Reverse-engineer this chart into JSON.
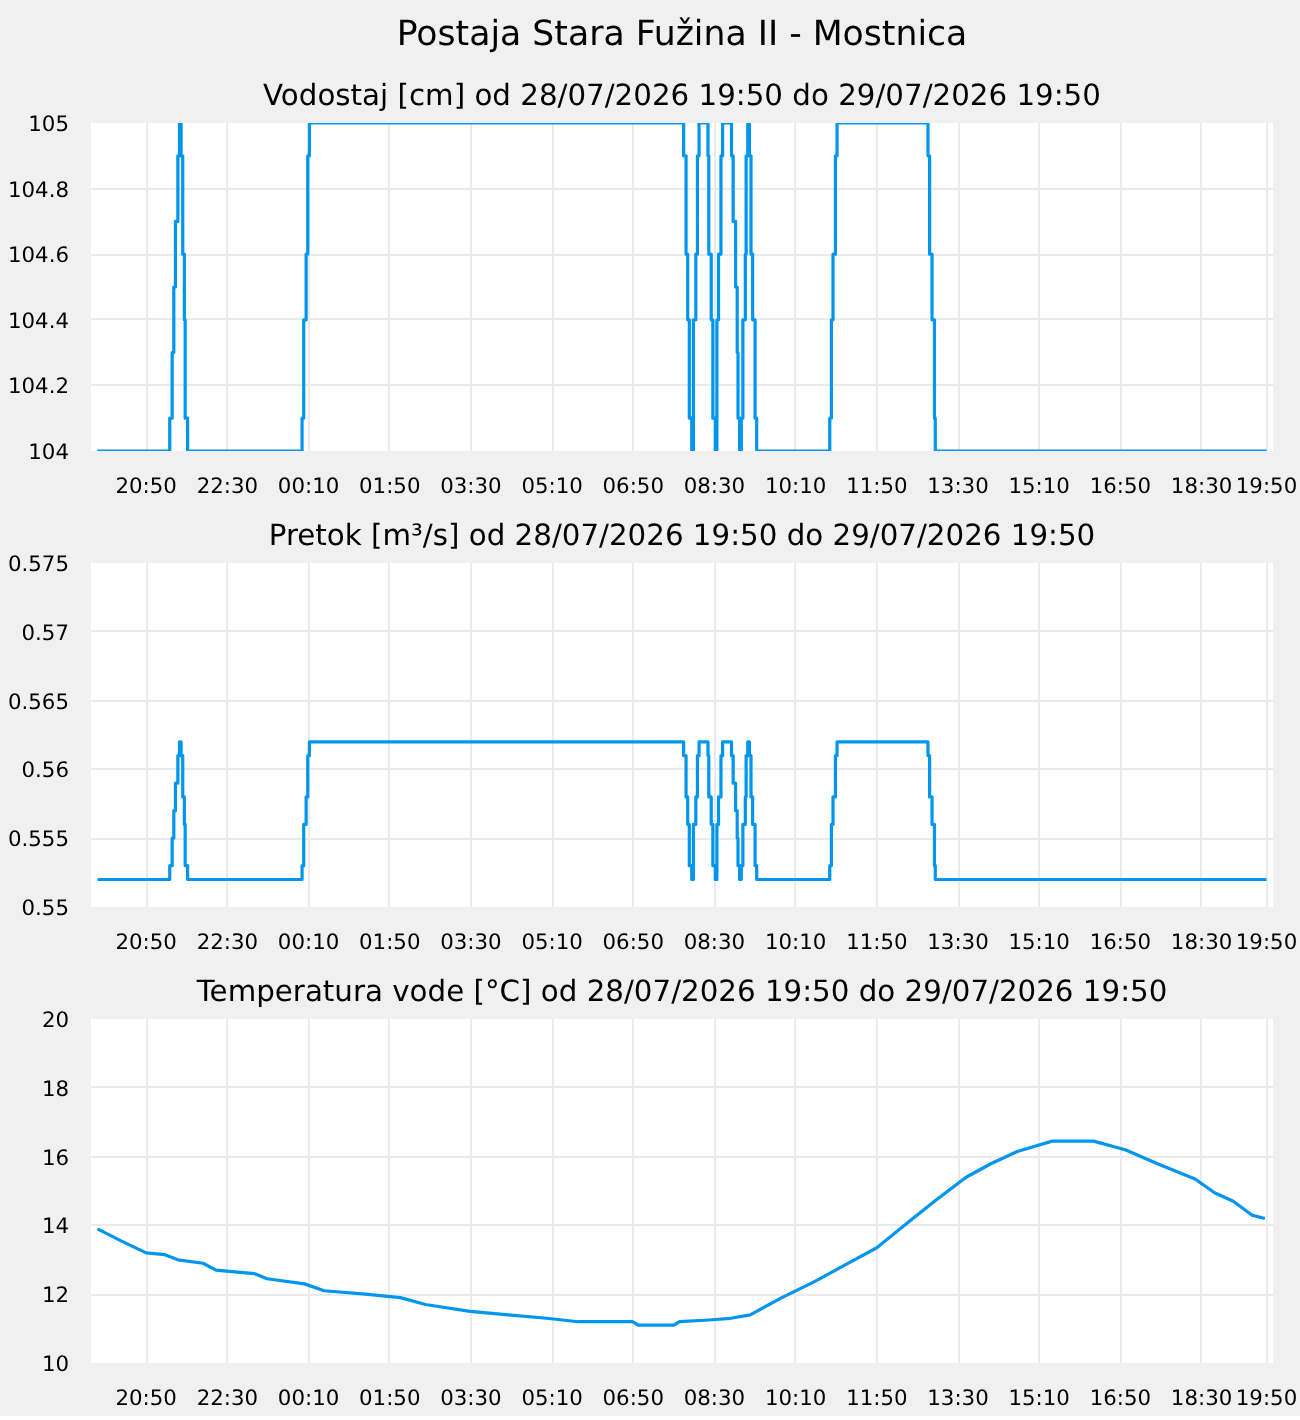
{
  "chart_data": [
    {
      "type": "step",
      "title": "Postaja Stara Fužina II - Mostnica",
      "subtitle": "Vodostaj [cm] od 28/07/2026 19:50 do 29/07/2026 19:50",
      "color": "#0096ee",
      "grid": true,
      "x": [
        "2026-07-28T19:50",
        "2026-07-28T21:19",
        "2026-07-28T21:22",
        "2026-07-28T21:24",
        "2026-07-28T21:26",
        "2026-07-28T21:29",
        "2026-07-28T21:31",
        "2026-07-28T21:33",
        "2026-07-28T21:35",
        "2026-07-28T21:37",
        "2026-07-28T21:38",
        "2026-07-28T21:41",
        "2026-07-29T00:02",
        "2026-07-29T00:04",
        "2026-07-29T00:07",
        "2026-07-29T00:09",
        "2026-07-29T00:11",
        "2026-07-29T07:52",
        "2026-07-29T07:55",
        "2026-07-29T07:57",
        "2026-07-29T07:59",
        "2026-07-29T08:02",
        "2026-07-29T08:04",
        "2026-07-29T08:07",
        "2026-07-29T08:09",
        "2026-07-29T08:11",
        "2026-07-29T08:22",
        "2026-07-29T08:23",
        "2026-07-29T08:26",
        "2026-07-29T08:28",
        "2026-07-29T08:31",
        "2026-07-29T08:33",
        "2026-07-29T08:35",
        "2026-07-29T08:38",
        "2026-07-29T08:40",
        "2026-07-29T08:51",
        "2026-07-29T08:53",
        "2026-07-29T08:56",
        "2026-07-29T08:58",
        "2026-07-29T08:59",
        "2026-07-29T09:01",
        "2026-07-29T09:03",
        "2026-07-29T09:05",
        "2026-07-29T09:08",
        "2026-07-29T09:09",
        "2026-07-29T09:11",
        "2026-07-29T09:13",
        "2026-07-29T09:15",
        "2026-07-29T09:17",
        "2026-07-29T09:20",
        "2026-07-29T09:22",
        "2026-07-29T10:52",
        "2026-07-29T10:54",
        "2026-07-29T10:56",
        "2026-07-29T10:59",
        "2026-07-29T11:01",
        "2026-07-29T12:53",
        "2026-07-29T12:55",
        "2026-07-29T12:58",
        "2026-07-29T13:01",
        "2026-07-29T13:02",
        "2026-07-29T19:50"
      ],
      "values": [
        104,
        104.1,
        104.3,
        104.5,
        104.7,
        104.9,
        105,
        104.9,
        104.6,
        104.4,
        104.1,
        104,
        104.1,
        104.4,
        104.6,
        104.9,
        105,
        104.9,
        104.6,
        104.4,
        104.1,
        104,
        104.4,
        104.6,
        104.9,
        105,
        104.9,
        104.6,
        104.4,
        104.1,
        104,
        104.4,
        104.6,
        104.9,
        105,
        104.9,
        104.7,
        104.5,
        104.3,
        104.1,
        104,
        104.1,
        104.4,
        104.6,
        104.9,
        105,
        104.9,
        104.6,
        104.4,
        104.1,
        104,
        104.1,
        104.4,
        104.6,
        104.9,
        105,
        104.9,
        104.6,
        104.4,
        104.1,
        104,
        104
      ],
      "xlim": [
        "2026-07-28T19:42",
        "2026-07-29T19:58"
      ],
      "ylim": [
        104,
        105
      ],
      "yticks": [
        104,
        104.2,
        104.4,
        104.6,
        104.8,
        105
      ],
      "xticks": [
        {
          "value": "2026-07-28T20:50",
          "label": "20:50"
        },
        {
          "value": "2026-07-28T22:30",
          "label": "22:30"
        },
        {
          "value": "2026-07-29T00:10",
          "label": "00:10"
        },
        {
          "value": "2026-07-29T01:50",
          "label": "01:50"
        },
        {
          "value": "2026-07-29T03:30",
          "label": "03:30"
        },
        {
          "value": "2026-07-29T05:10",
          "label": "05:10"
        },
        {
          "value": "2026-07-29T06:50",
          "label": "06:50"
        },
        {
          "value": "2026-07-29T08:30",
          "label": "08:30"
        },
        {
          "value": "2026-07-29T10:10",
          "label": "10:10"
        },
        {
          "value": "2026-07-29T11:50",
          "label": "11:50"
        },
        {
          "value": "2026-07-29T13:30",
          "label": "13:30"
        },
        {
          "value": "2026-07-29T15:10",
          "label": "15:10"
        },
        {
          "value": "2026-07-29T16:50",
          "label": "16:50"
        },
        {
          "value": "2026-07-29T18:30",
          "label": "18:30"
        },
        {
          "value": "2026-07-29T19:50",
          "label": "19:50"
        }
      ]
    },
    {
      "type": "step",
      "title": "Pretok [m³/s] od 28/07/2026 19:50 do 29/07/2026 19:50",
      "color": "#0096ee",
      "grid": true,
      "x": [
        "2026-07-28T19:50",
        "2026-07-28T21:19",
        "2026-07-28T21:22",
        "2026-07-28T21:24",
        "2026-07-28T21:26",
        "2026-07-28T21:29",
        "2026-07-28T21:31",
        "2026-07-28T21:33",
        "2026-07-28T21:35",
        "2026-07-28T21:37",
        "2026-07-28T21:38",
        "2026-07-28T21:41",
        "2026-07-29T00:02",
        "2026-07-29T00:04",
        "2026-07-29T00:07",
        "2026-07-29T00:09",
        "2026-07-29T00:11",
        "2026-07-29T07:52",
        "2026-07-29T07:55",
        "2026-07-29T07:57",
        "2026-07-29T07:59",
        "2026-07-29T08:02",
        "2026-07-29T08:04",
        "2026-07-29T08:07",
        "2026-07-29T08:09",
        "2026-07-29T08:11",
        "2026-07-29T08:22",
        "2026-07-29T08:23",
        "2026-07-29T08:26",
        "2026-07-29T08:28",
        "2026-07-29T08:31",
        "2026-07-29T08:33",
        "2026-07-29T08:35",
        "2026-07-29T08:38",
        "2026-07-29T08:40",
        "2026-07-29T08:51",
        "2026-07-29T08:53",
        "2026-07-29T08:56",
        "2026-07-29T08:58",
        "2026-07-29T08:59",
        "2026-07-29T09:01",
        "2026-07-29T09:03",
        "2026-07-29T09:05",
        "2026-07-29T09:08",
        "2026-07-29T09:09",
        "2026-07-29T09:11",
        "2026-07-29T09:13",
        "2026-07-29T09:15",
        "2026-07-29T09:17",
        "2026-07-29T09:20",
        "2026-07-29T09:22",
        "2026-07-29T10:52",
        "2026-07-29T10:54",
        "2026-07-29T10:56",
        "2026-07-29T10:59",
        "2026-07-29T11:01",
        "2026-07-29T12:53",
        "2026-07-29T12:55",
        "2026-07-29T12:58",
        "2026-07-29T13:01",
        "2026-07-29T13:02",
        "2026-07-29T19:50"
      ],
      "values": [
        0.552,
        0.553,
        0.555,
        0.557,
        0.559,
        0.561,
        0.562,
        0.561,
        0.558,
        0.556,
        0.553,
        0.552,
        0.553,
        0.556,
        0.558,
        0.561,
        0.562,
        0.561,
        0.558,
        0.556,
        0.553,
        0.552,
        0.556,
        0.558,
        0.561,
        0.562,
        0.561,
        0.558,
        0.556,
        0.553,
        0.552,
        0.556,
        0.558,
        0.561,
        0.562,
        0.561,
        0.559,
        0.557,
        0.555,
        0.553,
        0.552,
        0.553,
        0.556,
        0.558,
        0.561,
        0.562,
        0.561,
        0.558,
        0.556,
        0.553,
        0.552,
        0.553,
        0.556,
        0.558,
        0.561,
        0.562,
        0.561,
        0.558,
        0.556,
        0.553,
        0.552,
        0.552
      ],
      "xlim": [
        "2026-07-28T19:42",
        "2026-07-29T19:58"
      ],
      "ylim": [
        0.55,
        0.575
      ],
      "yticks": [
        0.55,
        0.555,
        0.56,
        0.565,
        0.57,
        0.575
      ],
      "xticks": [
        {
          "value": "2026-07-28T20:50",
          "label": "20:50"
        },
        {
          "value": "2026-07-28T22:30",
          "label": "22:30"
        },
        {
          "value": "2026-07-29T00:10",
          "label": "00:10"
        },
        {
          "value": "2026-07-29T01:50",
          "label": "01:50"
        },
        {
          "value": "2026-07-29T03:30",
          "label": "03:30"
        },
        {
          "value": "2026-07-29T05:10",
          "label": "05:10"
        },
        {
          "value": "2026-07-29T06:50",
          "label": "06:50"
        },
        {
          "value": "2026-07-29T08:30",
          "label": "08:30"
        },
        {
          "value": "2026-07-29T10:10",
          "label": "10:10"
        },
        {
          "value": "2026-07-29T11:50",
          "label": "11:50"
        },
        {
          "value": "2026-07-29T13:30",
          "label": "13:30"
        },
        {
          "value": "2026-07-29T15:10",
          "label": "15:10"
        },
        {
          "value": "2026-07-29T16:50",
          "label": "16:50"
        },
        {
          "value": "2026-07-29T18:30",
          "label": "18:30"
        },
        {
          "value": "2026-07-29T19:50",
          "label": "19:50"
        }
      ]
    },
    {
      "type": "line",
      "title": "Temperatura vode [°C] od 28/07/2026 19:50 do 29/07/2026 19:50",
      "color": "#0096ee",
      "grid": true,
      "x": [
        "2026-07-28T19:50",
        "2026-07-28T20:19",
        "2026-07-28T20:50",
        "2026-07-28T21:13",
        "2026-07-28T21:29",
        "2026-07-28T22:00",
        "2026-07-28T22:16",
        "2026-07-28T23:03",
        "2026-07-28T23:19",
        "2026-07-29T00:05",
        "2026-07-29T00:29",
        "2026-07-29T01:20",
        "2026-07-29T02:03",
        "2026-07-29T02:34",
        "2026-07-29T03:29",
        "2026-07-29T04:16",
        "2026-07-29T05:03",
        "2026-07-29T05:42",
        "2026-07-29T06:49",
        "2026-07-29T06:56",
        "2026-07-29T07:40",
        "2026-07-29T07:47",
        "2026-07-29T08:23",
        "2026-07-29T08:50",
        "2026-07-29T09:14",
        "2026-07-29T09:53",
        "2026-07-29T10:32",
        "2026-07-29T11:11",
        "2026-07-29T11:50",
        "2026-07-29T12:29",
        "2026-07-29T13:01",
        "2026-07-29T13:40",
        "2026-07-29T14:11",
        "2026-07-29T14:43",
        "2026-07-29T15:26",
        "2026-07-29T16:17",
        "2026-07-29T16:56",
        "2026-07-29T17:35",
        "2026-07-29T18:22",
        "2026-07-29T18:46",
        "2026-07-29T19:09",
        "2026-07-29T19:32",
        "2026-07-29T19:48"
      ],
      "values": [
        13.9,
        13.55,
        13.2,
        13.15,
        13.0,
        12.9,
        12.7,
        12.6,
        12.45,
        12.3,
        12.1,
        12.0,
        11.9,
        11.7,
        11.5,
        11.4,
        11.3,
        11.2,
        11.2,
        11.1,
        11.1,
        11.2,
        11.25,
        11.3,
        11.4,
        11.9,
        12.35,
        12.85,
        13.35,
        14.1,
        14.7,
        15.4,
        15.8,
        16.15,
        16.45,
        16.45,
        16.2,
        15.8,
        15.35,
        14.95,
        14.7,
        14.3,
        14.2
      ],
      "xlim": [
        "2026-07-28T19:42",
        "2026-07-29T19:58"
      ],
      "ylim": [
        10,
        20
      ],
      "yticks": [
        10,
        12,
        14,
        16,
        18,
        20
      ],
      "xticks": [
        {
          "value": "2026-07-28T20:50",
          "label": "20:50"
        },
        {
          "value": "2026-07-28T22:30",
          "label": "22:30"
        },
        {
          "value": "2026-07-29T00:10",
          "label": "00:10"
        },
        {
          "value": "2026-07-29T01:50",
          "label": "01:50"
        },
        {
          "value": "2026-07-29T03:30",
          "label": "03:30"
        },
        {
          "value": "2026-07-29T05:10",
          "label": "05:10"
        },
        {
          "value": "2026-07-29T06:50",
          "label": "06:50"
        },
        {
          "value": "2026-07-29T08:30",
          "label": "08:30"
        },
        {
          "value": "2026-07-29T10:10",
          "label": "10:10"
        },
        {
          "value": "2026-07-29T11:50",
          "label": "11:50"
        },
        {
          "value": "2026-07-29T13:30",
          "label": "13:30"
        },
        {
          "value": "2026-07-29T15:10",
          "label": "15:10"
        },
        {
          "value": "2026-07-29T16:50",
          "label": "16:50"
        },
        {
          "value": "2026-07-29T18:30",
          "label": "18:30"
        },
        {
          "value": "2026-07-29T19:50",
          "label": "19:50"
        }
      ]
    }
  ]
}
